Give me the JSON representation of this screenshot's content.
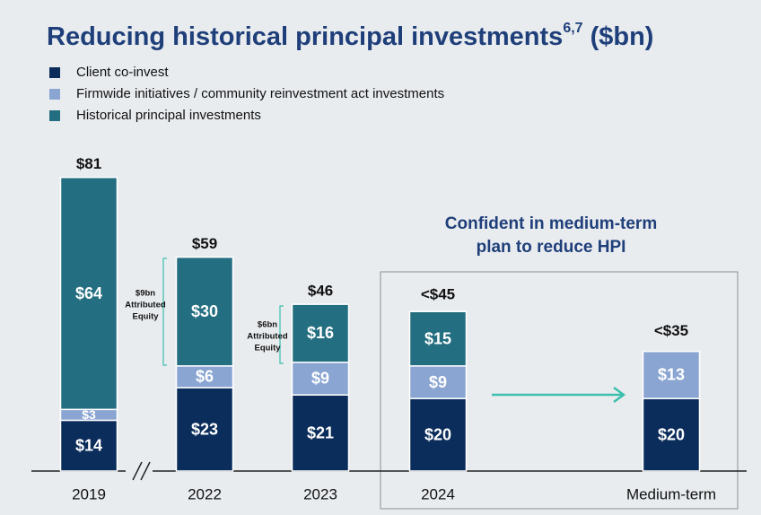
{
  "chart_data": {
    "type": "stacked_bar",
    "title": "Reducing historical principal investments",
    "title_superscript": "6,7",
    "title_suffix": "($bn)",
    "categories": [
      "2019",
      "2022",
      "2023",
      "2024",
      "Medium-term"
    ],
    "series": [
      {
        "name": "Client co-invest",
        "color": "#0b2d5b",
        "values": [
          14,
          23,
          21,
          20,
          20
        ],
        "value_labels": [
          "$14",
          "$23",
          "$21",
          "$20",
          "$20"
        ]
      },
      {
        "name": "Firmwide initiatives / community reinvestment act investments",
        "color": "#8aa5d2",
        "values": [
          3,
          6,
          9,
          9,
          13
        ],
        "value_labels": [
          "$3",
          "$6",
          "$9",
          "$9",
          "$13"
        ]
      },
      {
        "name": "Historical principal investments",
        "color": "#236e80",
        "values": [
          64,
          30,
          16,
          15,
          null
        ],
        "value_labels": [
          "$64",
          "$30",
          "$16",
          "$15",
          null
        ]
      }
    ],
    "totals": {
      "values": [
        81,
        59,
        46,
        45,
        35
      ],
      "value_labels": [
        "$81",
        "$59",
        "$46",
        "<$45",
        "<$35"
      ]
    },
    "annotations": [
      {
        "lines": [
          "$9bn",
          "Attributed",
          "Equity"
        ]
      },
      {
        "lines": [
          "$6bn",
          "Attributed",
          "Equity"
        ]
      }
    ],
    "callout": [
      "Confident in medium-term",
      "plan to reduce HPI"
    ]
  }
}
